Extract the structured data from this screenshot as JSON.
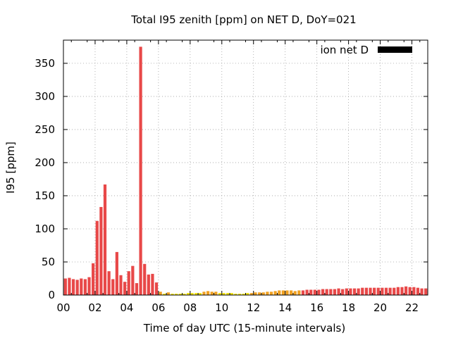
{
  "chart_data": {
    "type": "bar",
    "title": "Total I95 zenith [ppm] on NET D, DoY=021",
    "xlabel": "Time of day UTC (15-minute intervals)",
    "ylabel": "I95 [ppm]",
    "legend": {
      "label": "ion net D",
      "position": "top-right",
      "color": "#000000"
    },
    "grid": true,
    "xlim": [
      0,
      23
    ],
    "ylim": [
      0,
      385
    ],
    "x_ticks": [
      {
        "value": 0,
        "label": "00"
      },
      {
        "value": 2,
        "label": "02"
      },
      {
        "value": 4,
        "label": "04"
      },
      {
        "value": 6,
        "label": "06"
      },
      {
        "value": 8,
        "label": "08"
      },
      {
        "value": 10,
        "label": "10"
      },
      {
        "value": 12,
        "label": "12"
      },
      {
        "value": 14,
        "label": "14"
      },
      {
        "value": 16,
        "label": "16"
      },
      {
        "value": 18,
        "label": "18"
      },
      {
        "value": 20,
        "label": "20"
      },
      {
        "value": 22,
        "label": "22"
      }
    ],
    "y_ticks": [
      {
        "value": 0,
        "label": "0"
      },
      {
        "value": 50,
        "label": "50"
      },
      {
        "value": 100,
        "label": "100"
      },
      {
        "value": 150,
        "label": "150"
      },
      {
        "value": 200,
        "label": "200"
      },
      {
        "value": 250,
        "label": "250"
      },
      {
        "value": 300,
        "label": "300"
      },
      {
        "value": 350,
        "label": "350"
      }
    ],
    "colors": {
      "high": "#e84848",
      "medium": "#f0a020",
      "low": "#f0e000"
    },
    "interval_hours": 0.25,
    "series": [
      {
        "values": [
          25,
          26,
          24,
          23,
          25,
          24,
          27,
          48,
          112,
          133,
          167,
          36,
          24,
          65,
          30,
          20,
          36,
          44,
          18,
          375,
          47,
          31,
          32,
          19,
          5,
          2,
          4,
          2,
          2,
          2,
          2,
          3,
          3,
          3,
          3,
          5,
          6,
          5,
          5,
          3,
          3,
          3,
          3,
          2,
          2,
          2,
          3,
          3,
          4,
          4,
          4,
          5,
          5,
          6,
          7,
          7,
          7,
          7,
          6,
          7,
          7,
          8,
          8,
          8,
          8,
          9,
          9,
          9,
          9,
          10,
          9,
          10,
          10,
          10,
          10,
          11,
          11,
          11,
          11,
          11,
          11,
          11,
          11,
          11,
          12,
          12,
          13,
          12,
          12,
          11,
          10,
          10,
          10,
          11,
          10,
          7,
          7
        ],
        "levels": [
          "high",
          "high",
          "high",
          "high",
          "high",
          "high",
          "high",
          "high",
          "high",
          "high",
          "high",
          "high",
          "high",
          "high",
          "high",
          "high",
          "high",
          "high",
          "high",
          "high",
          "high",
          "high",
          "high",
          "high",
          "medium",
          "low",
          "medium",
          "low",
          "low",
          "low",
          "low",
          "low",
          "low",
          "low",
          "low",
          "medium",
          "medium",
          "medium",
          "medium",
          "low",
          "low",
          "low",
          "low",
          "low",
          "low",
          "low",
          "low",
          "medium",
          "medium",
          "medium",
          "medium",
          "medium",
          "medium",
          "medium",
          "medium",
          "medium",
          "medium",
          "medium",
          "medium",
          "medium",
          "high",
          "high",
          "high",
          "high",
          "high",
          "high",
          "high",
          "high",
          "high",
          "high",
          "high",
          "high",
          "high",
          "high",
          "high",
          "high",
          "high",
          "high",
          "high",
          "high",
          "high",
          "high",
          "high",
          "high",
          "high",
          "high",
          "high",
          "high",
          "high",
          "high",
          "high",
          "high",
          "high",
          "high",
          "high",
          "medium",
          "medium"
        ]
      }
    ]
  }
}
